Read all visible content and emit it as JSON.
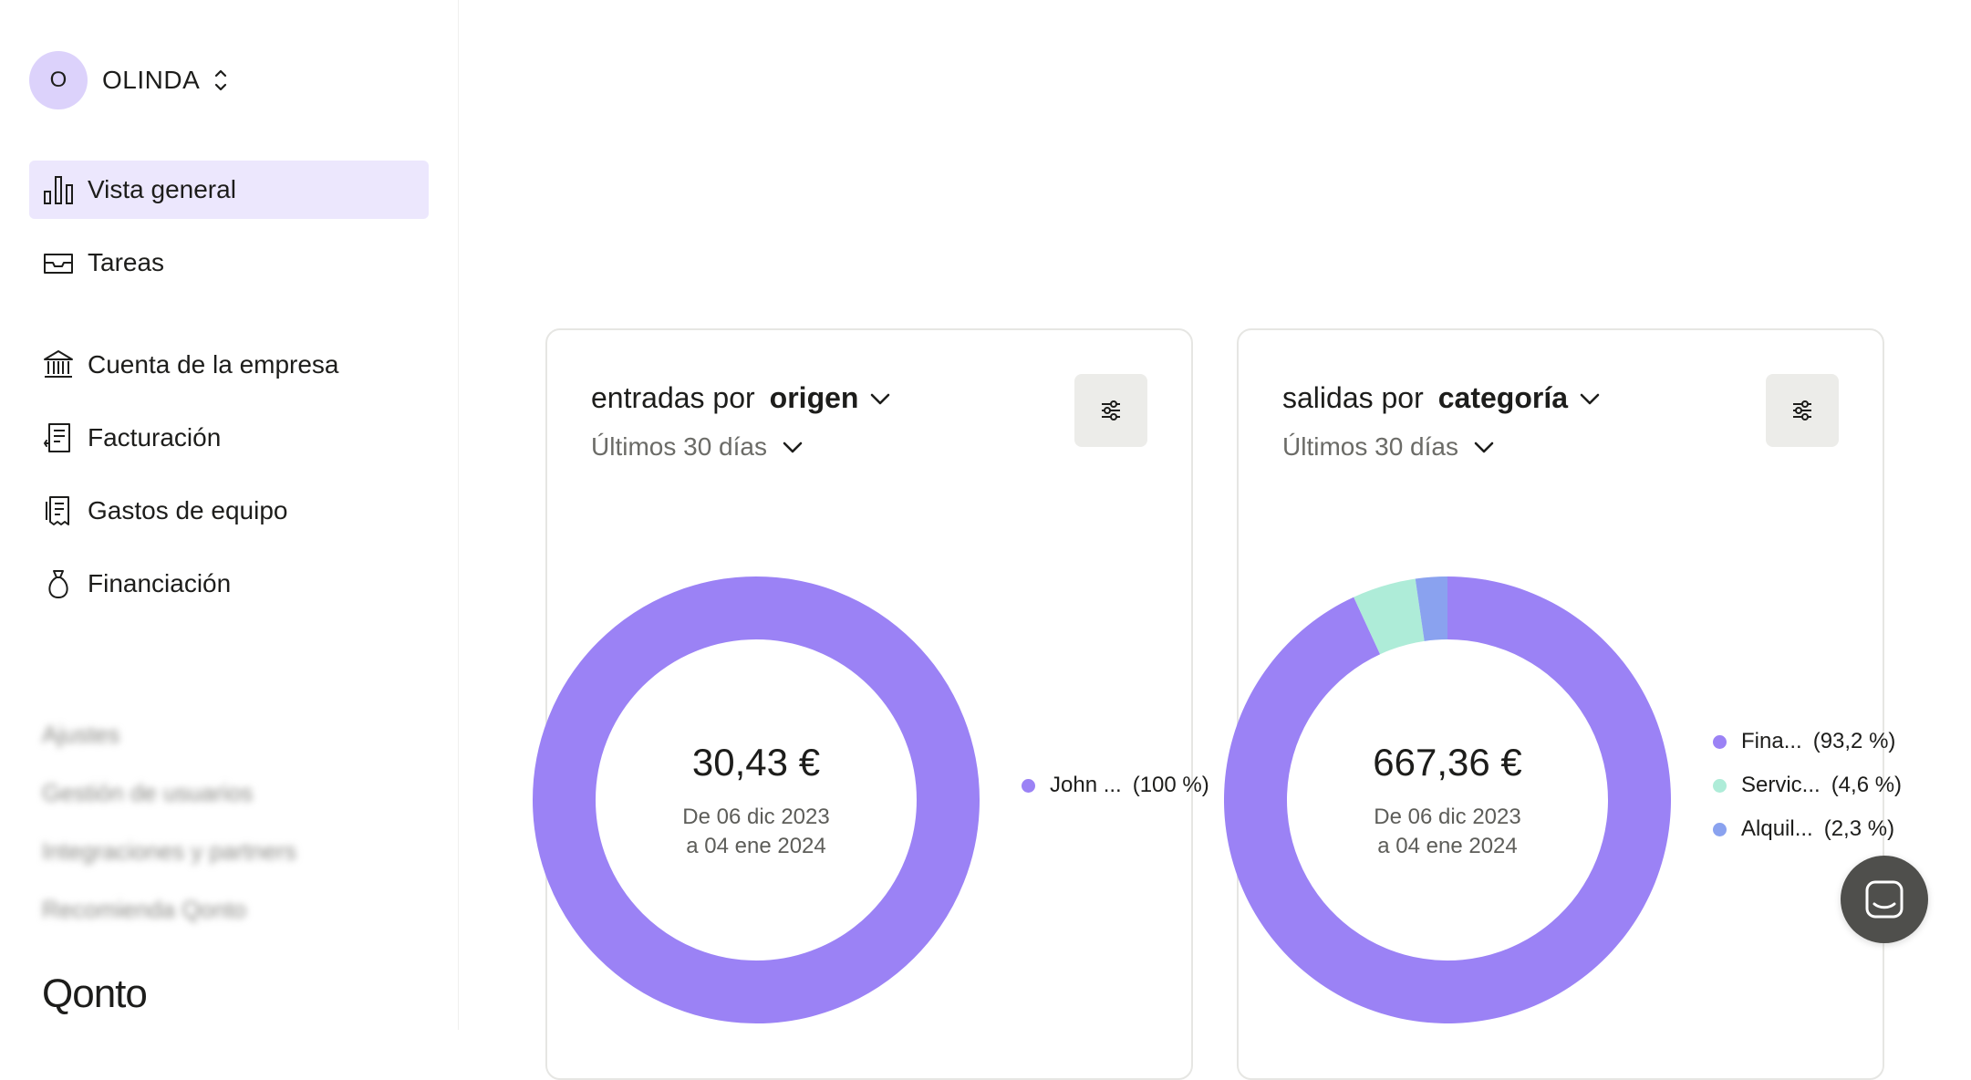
{
  "org": {
    "initial": "O",
    "name": "OLINDA"
  },
  "nav": [
    {
      "label": "Vista general",
      "icon": "bar-chart-icon",
      "active": true
    },
    {
      "label": "Tareas",
      "icon": "inbox-icon"
    },
    {
      "label": "Cuenta de la empresa",
      "icon": "bank-icon"
    },
    {
      "label": "Facturación",
      "icon": "invoice-icon"
    },
    {
      "label": "Gastos de equipo",
      "icon": "receipt-icon"
    },
    {
      "label": "Financiación",
      "icon": "money-bag-icon"
    }
  ],
  "secondary_nav": [
    "Ajustes",
    "Gestión de usuarios",
    "Integraciones y partners",
    "Recomienda Qonto"
  ],
  "brand": {
    "logo_text": "Qonto"
  },
  "cards": {
    "income": {
      "title_prefix": "entradas por",
      "title_dimension": "origen",
      "period": "Últimos 30 días",
      "total": "30,43 €",
      "range_line1": "De 06 dic 2023",
      "range_line2": "a 04 ene 2024",
      "legend": [
        {
          "label": "John ...",
          "pct": "(100 %)",
          "color": "#9b82f5"
        }
      ]
    },
    "expenses": {
      "title_prefix": "salidas por",
      "title_dimension": "categoría",
      "period": "Últimos 30 días",
      "total": "667,36 €",
      "range_line1": "De 06 dic 2023",
      "range_line2": "a 04 ene 2024",
      "legend": [
        {
          "label": "Fina...",
          "pct": "(93,2 %)",
          "color": "#9b82f5"
        },
        {
          "label": "Servic...",
          "pct": "(4,6 %)",
          "color": "#aeecd8"
        },
        {
          "label": "Alquil...",
          "pct": "(2,3 %)",
          "color": "#8aa2ef"
        }
      ]
    }
  },
  "chart_data": [
    {
      "type": "pie",
      "title": "entradas por origen",
      "categories": [
        "John ..."
      ],
      "values": [
        100
      ],
      "colors": [
        "#9b82f5"
      ],
      "center_label": "30,43 €"
    },
    {
      "type": "pie",
      "title": "salidas por categoría",
      "categories": [
        "Fina...",
        "Servic...",
        "Alquil..."
      ],
      "values": [
        93.2,
        4.6,
        2.3
      ],
      "colors": [
        "#9b82f5",
        "#aeecd8",
        "#8aa2ef"
      ],
      "center_label": "667,36 €"
    }
  ]
}
